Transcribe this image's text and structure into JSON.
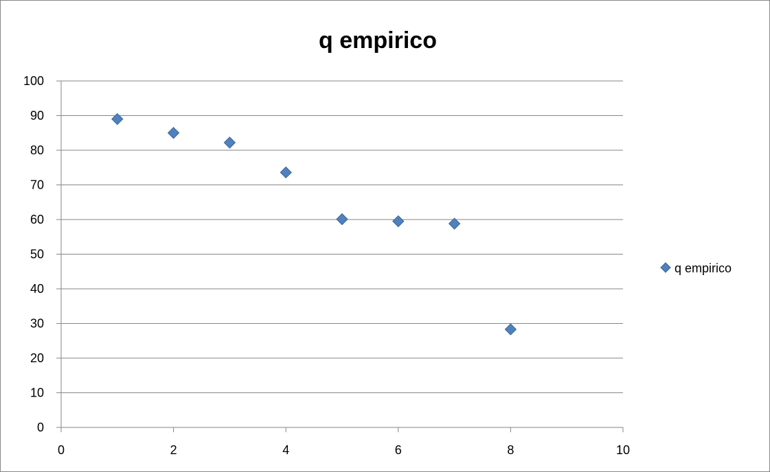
{
  "chart_data": {
    "type": "scatter",
    "title": "q empirico",
    "xlabel": "",
    "ylabel": "",
    "xlim": [
      0,
      10
    ],
    "ylim": [
      0,
      100
    ],
    "x_ticks": [
      0,
      2,
      4,
      6,
      8,
      10
    ],
    "y_ticks": [
      0,
      10,
      20,
      30,
      40,
      50,
      60,
      70,
      80,
      90,
      100
    ],
    "grid": "horizontal",
    "legend_position": "right",
    "series": [
      {
        "name": "q empirico",
        "color": "#4F81BD",
        "marker": "diamond",
        "x": [
          1,
          2,
          3,
          4,
          5,
          6,
          7,
          8
        ],
        "y": [
          89,
          85,
          82.2,
          73.6,
          60.1,
          59.5,
          58.8,
          28.3
        ]
      }
    ]
  }
}
